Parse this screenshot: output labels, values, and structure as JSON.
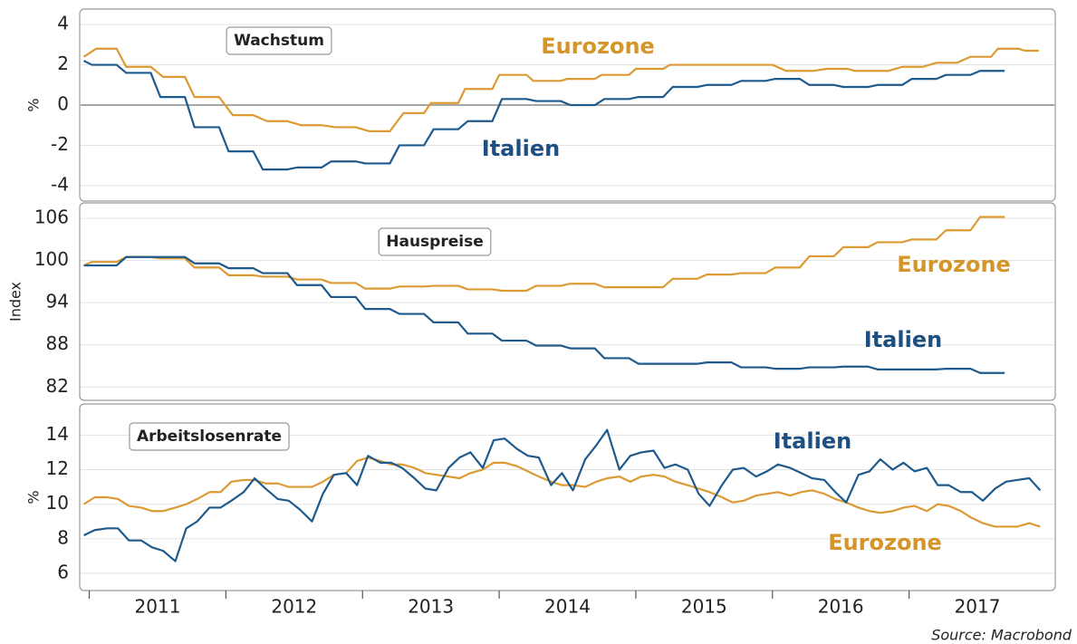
{
  "chart_data": [
    {
      "type": "line",
      "title": "Wachstum",
      "ylabel": "%",
      "xlim": [
        2010.93,
        2018.07
      ],
      "ylim": [
        -4.77,
        4.77
      ],
      "yticks": [
        -4,
        -2,
        0,
        2,
        4
      ],
      "grid": true,
      "series": [
        {
          "name": "Eurozone",
          "color": "#dc9a33",
          "x": [
            2010.96,
            2011.05,
            2011.2,
            2011.27,
            2011.45,
            2011.54,
            2011.7,
            2011.77,
            2011.95,
            2012.05,
            2012.2,
            2012.3,
            2012.45,
            2012.55,
            2012.7,
            2012.8,
            2012.95,
            2013.05,
            2013.2,
            2013.3,
            2013.45,
            2013.5,
            2013.7,
            2013.75,
            2013.95,
            2014.0,
            2014.2,
            2014.25,
            2014.45,
            2014.5,
            2014.7,
            2014.75,
            2014.95,
            2015.0,
            2015.2,
            2015.25,
            2016.0,
            2016.1,
            2016.3,
            2016.4,
            2016.55,
            2016.6,
            2016.85,
            2016.95,
            2017.1,
            2017.2,
            2017.35,
            2017.45,
            2017.6,
            2017.65,
            2017.8,
            2017.85,
            2017.95
          ],
          "values": [
            2.4,
            2.8,
            2.8,
            1.9,
            1.9,
            1.4,
            1.4,
            0.4,
            0.4,
            -0.5,
            -0.5,
            -0.8,
            -0.8,
            -1.0,
            -1.0,
            -1.1,
            -1.1,
            -1.3,
            -1.3,
            -0.4,
            -0.4,
            0.1,
            0.1,
            0.8,
            0.8,
            1.5,
            1.5,
            1.2,
            1.2,
            1.3,
            1.3,
            1.5,
            1.5,
            1.8,
            1.8,
            2.0,
            2.0,
            1.7,
            1.7,
            1.8,
            1.8,
            1.7,
            1.7,
            1.9,
            1.9,
            2.1,
            2.1,
            2.4,
            2.4,
            2.8,
            2.8,
            2.7,
            2.7
          ]
        },
        {
          "name": "Italien",
          "color": "#1f5a8c",
          "x": [
            2010.96,
            2011.02,
            2011.2,
            2011.27,
            2011.45,
            2011.52,
            2011.7,
            2011.77,
            2011.95,
            2012.02,
            2012.2,
            2012.27,
            2012.45,
            2012.52,
            2012.7,
            2012.77,
            2012.95,
            2013.02,
            2013.2,
            2013.27,
            2013.45,
            2013.52,
            2013.7,
            2013.77,
            2013.95,
            2014.02,
            2014.2,
            2014.27,
            2014.45,
            2014.52,
            2014.7,
            2014.77,
            2014.95,
            2015.02,
            2015.2,
            2015.27,
            2015.45,
            2015.52,
            2015.7,
            2015.77,
            2015.95,
            2016.02,
            2016.2,
            2016.27,
            2016.45,
            2016.52,
            2016.7,
            2016.77,
            2016.95,
            2017.02,
            2017.2,
            2017.27,
            2017.45,
            2017.52,
            2017.7
          ],
          "values": [
            2.2,
            2.0,
            2.0,
            1.6,
            1.6,
            0.4,
            0.4,
            -1.1,
            -1.1,
            -2.3,
            -2.3,
            -3.2,
            -3.2,
            -3.1,
            -3.1,
            -2.8,
            -2.8,
            -2.9,
            -2.9,
            -2.0,
            -2.0,
            -1.2,
            -1.2,
            -0.8,
            -0.8,
            0.3,
            0.3,
            0.2,
            0.2,
            0.0,
            0.0,
            0.3,
            0.3,
            0.4,
            0.4,
            0.9,
            0.9,
            1.0,
            1.0,
            1.2,
            1.2,
            1.3,
            1.3,
            1.0,
            1.0,
            0.9,
            0.9,
            1.0,
            1.0,
            1.3,
            1.3,
            1.5,
            1.5,
            1.7,
            1.7
          ]
        }
      ]
    },
    {
      "type": "line",
      "title": "Hauspreise",
      "ylabel": "Index",
      "xlim": [
        2010.93,
        2018.07
      ],
      "ylim": [
        80.1,
        108.2
      ],
      "yticks": [
        82,
        88,
        94,
        100,
        106
      ],
      "grid": true,
      "x": [
        2010.96,
        2011.02,
        2011.2,
        2011.27,
        2011.45,
        2011.52,
        2011.7,
        2011.77,
        2011.95,
        2012.02,
        2012.2,
        2012.27,
        2012.45,
        2012.52,
        2012.7,
        2012.77,
        2012.95,
        2013.02,
        2013.2,
        2013.27,
        2013.45,
        2013.52,
        2013.7,
        2013.77,
        2013.95,
        2014.02,
        2014.2,
        2014.27,
        2014.45,
        2014.52,
        2014.7,
        2014.77,
        2014.95,
        2015.02,
        2015.2,
        2015.27,
        2015.45,
        2015.52,
        2015.7,
        2015.77,
        2015.95,
        2016.02,
        2016.2,
        2016.27,
        2016.45,
        2016.52,
        2016.7,
        2016.77,
        2016.95,
        2017.02,
        2017.2,
        2017.27,
        2017.45,
        2017.52,
        2017.7
      ],
      "series": [
        {
          "name": "Eurozone",
          "color": "#dc9a33",
          "values": [
            99.3,
            99.8,
            99.8,
            100.5,
            100.5,
            100.3,
            100.3,
            99.0,
            99.0,
            97.9,
            97.9,
            97.7,
            97.7,
            97.3,
            97.3,
            96.8,
            96.8,
            96.0,
            96.0,
            96.3,
            96.3,
            96.4,
            96.4,
            95.9,
            95.9,
            95.7,
            95.7,
            96.4,
            96.4,
            96.7,
            96.7,
            96.2,
            96.2,
            96.2,
            96.2,
            97.4,
            97.4,
            98.0,
            98.0,
            98.2,
            98.2,
            99.0,
            99.0,
            100.6,
            100.6,
            101.9,
            101.9,
            102.6,
            102.6,
            103.0,
            103.0,
            104.3,
            104.3,
            106.2,
            106.2
          ]
        },
        {
          "name": "Italien",
          "color": "#1f5a8c",
          "values": [
            99.3,
            99.3,
            99.3,
            100.5,
            100.5,
            100.5,
            100.5,
            99.6,
            99.6,
            98.9,
            98.9,
            98.2,
            98.2,
            96.5,
            96.5,
            94.8,
            94.8,
            93.1,
            93.1,
            92.4,
            92.4,
            91.2,
            91.2,
            89.6,
            89.6,
            88.6,
            88.6,
            87.9,
            87.9,
            87.5,
            87.5,
            86.1,
            86.1,
            85.3,
            85.3,
            85.3,
            85.3,
            85.5,
            85.5,
            84.8,
            84.8,
            84.6,
            84.6,
            84.8,
            84.8,
            84.9,
            84.9,
            84.5,
            84.5,
            84.5,
            84.5,
            84.6,
            84.6,
            84.0,
            84.0
          ]
        }
      ]
    },
    {
      "type": "line",
      "title": "Arbeitslosenrate",
      "ylabel": "%",
      "xlim": [
        2010.93,
        2018.07
      ],
      "ylim": [
        5,
        15.8
      ],
      "yticks": [
        6,
        8,
        10,
        12,
        14
      ],
      "grid": true,
      "xticks": [
        {
          "value": 2011,
          "label": "2011"
        },
        {
          "value": 2012,
          "label": "2012"
        },
        {
          "value": 2013,
          "label": "2013"
        },
        {
          "value": 2014,
          "label": "2014"
        },
        {
          "value": 2015,
          "label": "2015"
        },
        {
          "value": 2016,
          "label": "2016"
        },
        {
          "value": 2017,
          "label": "2017"
        }
      ],
      "x": [
        2010.96,
        2011.04,
        2011.13,
        2011.21,
        2011.29,
        2011.38,
        2011.46,
        2011.54,
        2011.63,
        2011.71,
        2011.79,
        2011.88,
        2011.96,
        2012.04,
        2012.13,
        2012.21,
        2012.29,
        2012.38,
        2012.46,
        2012.54,
        2012.63,
        2012.71,
        2012.79,
        2012.88,
        2012.96,
        2013.04,
        2013.13,
        2013.21,
        2013.29,
        2013.38,
        2013.46,
        2013.54,
        2013.63,
        2013.71,
        2013.79,
        2013.88,
        2013.96,
        2014.04,
        2014.13,
        2014.21,
        2014.29,
        2014.38,
        2014.46,
        2014.54,
        2014.63,
        2014.71,
        2014.79,
        2014.88,
        2014.96,
        2015.04,
        2015.13,
        2015.21,
        2015.29,
        2015.38,
        2015.46,
        2015.54,
        2015.63,
        2015.71,
        2015.79,
        2015.88,
        2015.96,
        2016.04,
        2016.13,
        2016.21,
        2016.29,
        2016.38,
        2016.46,
        2016.54,
        2016.63,
        2016.71,
        2016.79,
        2016.88,
        2016.96,
        2017.04,
        2017.13,
        2017.21,
        2017.29,
        2017.38,
        2017.46,
        2017.54,
        2017.63,
        2017.71,
        2017.79,
        2017.88,
        2017.96
      ],
      "series": [
        {
          "name": "Eurozone",
          "color": "#dc9a33",
          "values": [
            10.0,
            10.4,
            10.4,
            10.3,
            9.9,
            9.8,
            9.6,
            9.6,
            9.8,
            10.0,
            10.3,
            10.7,
            10.7,
            11.3,
            11.4,
            11.4,
            11.2,
            11.2,
            11.0,
            11.0,
            11.0,
            11.3,
            11.7,
            11.8,
            12.5,
            12.7,
            12.5,
            12.3,
            12.3,
            12.1,
            11.8,
            11.7,
            11.6,
            11.5,
            11.8,
            12.0,
            12.4,
            12.4,
            12.2,
            11.9,
            11.6,
            11.3,
            11.1,
            11.1,
            11.0,
            11.3,
            11.5,
            11.6,
            11.3,
            11.6,
            11.7,
            11.6,
            11.3,
            11.1,
            10.9,
            10.7,
            10.4,
            10.1,
            10.2,
            10.5,
            10.6,
            10.7,
            10.5,
            10.7,
            10.8,
            10.6,
            10.3,
            10.1,
            9.8,
            9.6,
            9.5,
            9.6,
            9.8,
            9.9,
            9.6,
            10.0,
            9.9,
            9.6,
            9.2,
            8.9,
            8.7,
            8.7,
            8.7,
            8.9,
            8.7
          ]
        },
        {
          "name": "Italien",
          "color": "#1f5a8c",
          "values": [
            8.2,
            8.5,
            8.6,
            8.6,
            7.9,
            7.9,
            7.5,
            7.3,
            6.7,
            8.6,
            9.0,
            9.8,
            9.8,
            10.2,
            10.7,
            11.5,
            10.9,
            10.3,
            10.2,
            9.7,
            9.0,
            10.6,
            11.7,
            11.8,
            11.1,
            12.8,
            12.4,
            12.4,
            12.1,
            11.5,
            10.9,
            10.8,
            12.1,
            12.7,
            13.0,
            12.1,
            13.7,
            13.8,
            13.2,
            12.8,
            12.7,
            11.1,
            11.8,
            10.8,
            12.6,
            13.4,
            14.3,
            12.0,
            12.8,
            13.0,
            13.1,
            12.1,
            12.3,
            12.0,
            10.6,
            9.9,
            11.1,
            12.0,
            12.1,
            11.6,
            11.9,
            12.3,
            12.1,
            11.8,
            11.5,
            11.4,
            10.7,
            10.1,
            11.7,
            11.9,
            12.6,
            12.0,
            12.4,
            11.9,
            12.1,
            11.1,
            11.1,
            10.7,
            10.7,
            10.2,
            10.9,
            11.3,
            11.4,
            11.5,
            10.8
          ]
        }
      ]
    }
  ],
  "source": "Source: Macrobond"
}
